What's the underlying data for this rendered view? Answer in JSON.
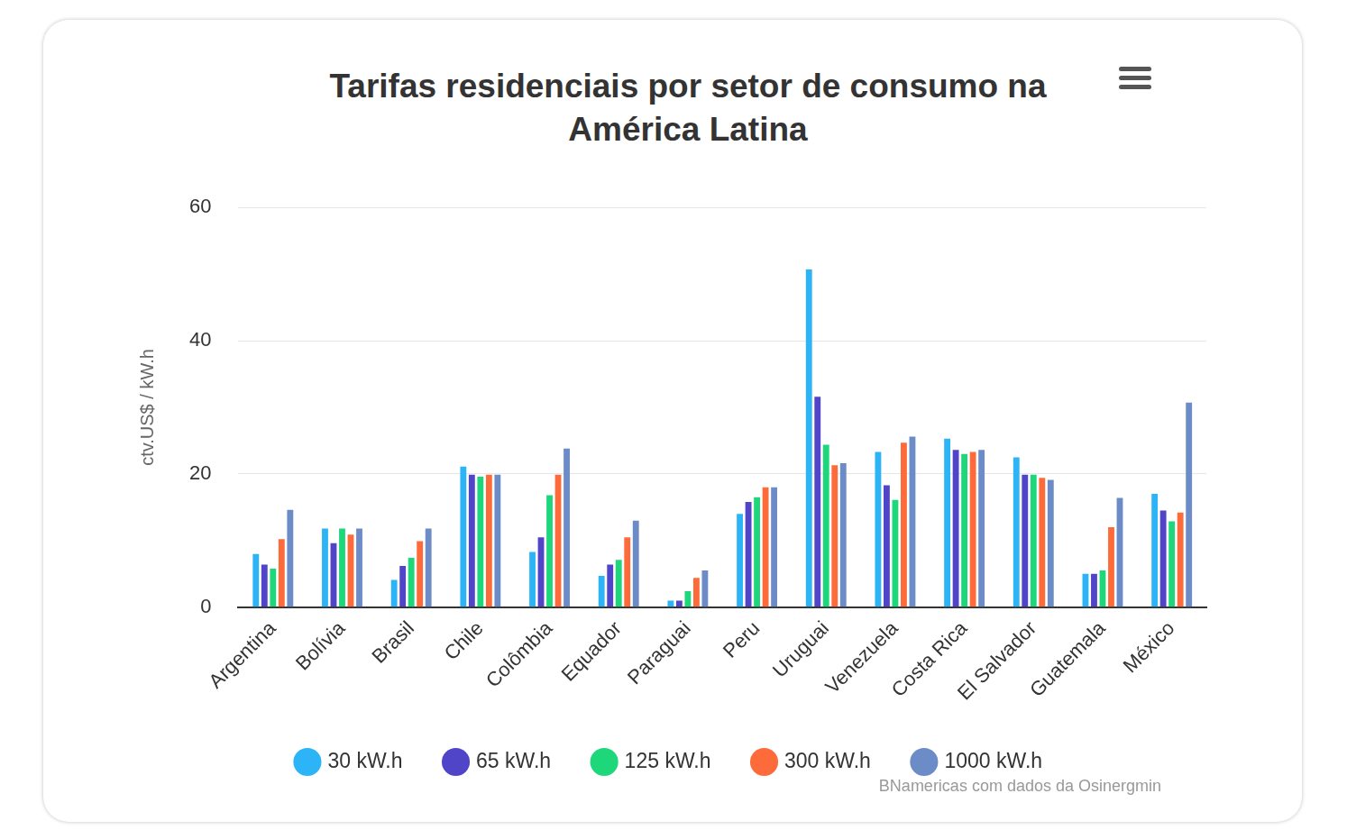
{
  "chart_data": {
    "type": "bar",
    "title": "Tarifas residenciais por setor de consumo na América Latina",
    "y_label": "ctv.US$ / kW.h",
    "annotations": [
      "BNamericas com dados da Osinergmin"
    ],
    "categories": [
      "Argentina",
      "Bolívia",
      "Brasil",
      "Chile",
      "Colômbia",
      "Equador",
      "Paraguai",
      "Peru",
      "Uruguai",
      "Venezuela",
      "Costa Rica",
      "El Salvador",
      "Guatemala",
      "México"
    ],
    "series": [
      {
        "name": "30 kW.h",
        "color": "#2db4f6",
        "values": [
          8.0,
          11.8,
          4.1,
          21.1,
          8.3,
          4.7,
          1.0,
          14.0,
          50.7,
          23.3,
          25.3,
          22.5,
          5.0,
          17.0
        ]
      },
      {
        "name": "65 kW.h",
        "color": "#5044c9",
        "values": [
          6.4,
          9.6,
          6.2,
          19.9,
          10.5,
          6.4,
          1.0,
          15.8,
          31.6,
          18.3,
          23.6,
          19.9,
          5.0,
          14.5
        ]
      },
      {
        "name": "125 kW.h",
        "color": "#1fd77b",
        "values": [
          5.8,
          11.8,
          7.4,
          19.6,
          16.8,
          7.1,
          2.4,
          16.5,
          24.4,
          16.1,
          23.0,
          19.9,
          5.5,
          12.9
        ]
      },
      {
        "name": "300 kW.h",
        "color": "#fd6b3a",
        "values": [
          10.2,
          10.9,
          9.9,
          19.9,
          19.9,
          10.5,
          4.4,
          18.0,
          21.3,
          24.7,
          23.3,
          19.4,
          12.0,
          14.2
        ]
      },
      {
        "name": "1000 kW.h",
        "color": "#6c8cc8",
        "values": [
          14.6,
          11.8,
          11.8,
          19.9,
          23.8,
          13.0,
          5.5,
          18.0,
          21.6,
          25.6,
          23.6,
          19.1,
          16.4,
          30.7
        ]
      }
    ],
    "ylim": [
      0,
      60
    ],
    "yticks": [
      0,
      20,
      40,
      60
    ],
    "grid": true,
    "legend": "bottom"
  }
}
